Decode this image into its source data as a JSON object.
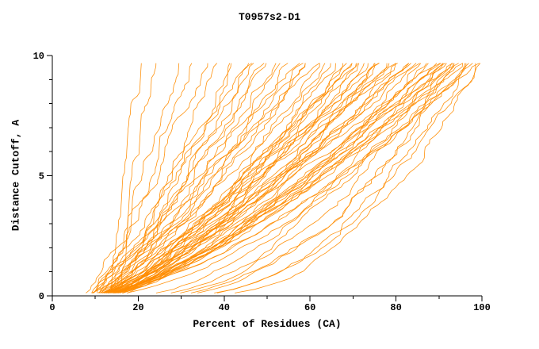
{
  "chart_data": {
    "type": "line",
    "title": "T0957s2-D1",
    "xlabel": "Percent of Residues (CA)",
    "ylabel": "Distance Cutoff, A",
    "xlim": [
      0,
      100
    ],
    "ylim": [
      0,
      10
    ],
    "x_major_ticks": [
      0,
      20,
      40,
      60,
      80,
      100
    ],
    "x_minor_step": 10,
    "y_major_ticks": [
      0,
      5,
      10
    ],
    "y_minor_step": 1,
    "grid": false,
    "legend": "none",
    "curve_color": "#FF8C00",
    "axis_color": "#000000",
    "y_start": 0.12,
    "y_top_reached": 9.68,
    "curves_format": "Each curve is [x_percent_at_bottom, x_percent_at_top_cutoff, shape_exponent]; x(y)=x0+(xtop-x0)*(y/y_top)^p with small jitter, approximating the ~70 model GDT curves in the figure",
    "curves": [
      [
        13.5,
        21,
        1.0
      ],
      [
        14.5,
        22.5,
        0.95
      ],
      [
        9,
        29,
        0.8
      ],
      [
        10,
        33,
        0.85
      ],
      [
        8,
        36,
        0.9
      ],
      [
        11,
        38,
        0.8
      ],
      [
        9.5,
        41,
        0.85
      ],
      [
        10.5,
        44,
        0.9
      ],
      [
        8.5,
        47,
        0.8
      ],
      [
        11.5,
        50,
        0.85
      ],
      [
        9,
        53,
        0.9
      ],
      [
        10,
        56,
        0.8
      ],
      [
        12,
        59,
        0.85
      ],
      [
        9,
        62,
        0.9
      ],
      [
        10,
        64,
        0.75
      ],
      [
        11,
        66,
        0.8
      ],
      [
        9,
        68,
        0.7
      ],
      [
        12,
        70,
        0.85
      ],
      [
        10,
        72,
        0.75
      ],
      [
        13,
        74,
        0.8
      ],
      [
        9.5,
        76,
        0.7
      ],
      [
        11,
        78,
        0.75
      ],
      [
        10,
        80,
        0.8
      ],
      [
        12,
        82,
        0.7
      ],
      [
        9,
        84,
        0.75
      ],
      [
        11.5,
        86,
        0.65
      ],
      [
        10,
        88,
        0.7
      ],
      [
        13,
        90,
        0.75
      ],
      [
        9,
        92,
        0.65
      ],
      [
        11,
        94,
        0.7
      ],
      [
        10,
        96,
        0.75
      ],
      [
        12,
        98,
        0.7
      ],
      [
        9.5,
        99,
        0.65
      ],
      [
        10.5,
        97,
        0.6
      ],
      [
        11,
        95,
        0.72
      ],
      [
        9,
        93,
        0.68
      ],
      [
        12.5,
        91,
        0.74
      ],
      [
        10,
        89,
        0.66
      ],
      [
        11,
        87,
        0.7
      ],
      [
        9.5,
        85,
        0.62
      ],
      [
        13,
        83,
        0.72
      ],
      [
        10,
        81,
        0.68
      ],
      [
        11.5,
        79,
        0.74
      ],
      [
        9,
        77,
        0.66
      ],
      [
        12,
        75,
        0.7
      ],
      [
        10.5,
        73,
        0.76
      ],
      [
        9,
        71,
        0.64
      ],
      [
        11,
        69,
        0.78
      ],
      [
        10,
        67,
        0.72
      ],
      [
        12,
        65,
        0.68
      ],
      [
        18,
        88,
        0.55
      ],
      [
        22,
        92,
        0.5
      ],
      [
        26,
        95,
        0.5
      ],
      [
        30,
        97,
        0.48
      ],
      [
        34,
        99,
        0.45
      ],
      [
        20,
        90,
        0.52
      ],
      [
        24,
        96,
        0.5
      ],
      [
        28,
        99,
        0.46
      ],
      [
        10,
        60,
        0.78
      ],
      [
        11,
        63,
        0.82
      ],
      [
        9.5,
        58,
        0.75
      ],
      [
        10.5,
        55,
        0.8
      ],
      [
        12,
        52,
        0.78
      ],
      [
        9,
        49,
        0.82
      ],
      [
        10,
        46,
        0.76
      ],
      [
        11,
        42,
        0.8
      ],
      [
        14,
        85,
        0.9
      ],
      [
        15,
        90,
        0.95
      ],
      [
        16,
        95,
        1.0
      ],
      [
        13,
        80,
        0.92
      ],
      [
        14,
        75,
        0.88
      ],
      [
        15,
        70,
        0.9
      ]
    ]
  }
}
